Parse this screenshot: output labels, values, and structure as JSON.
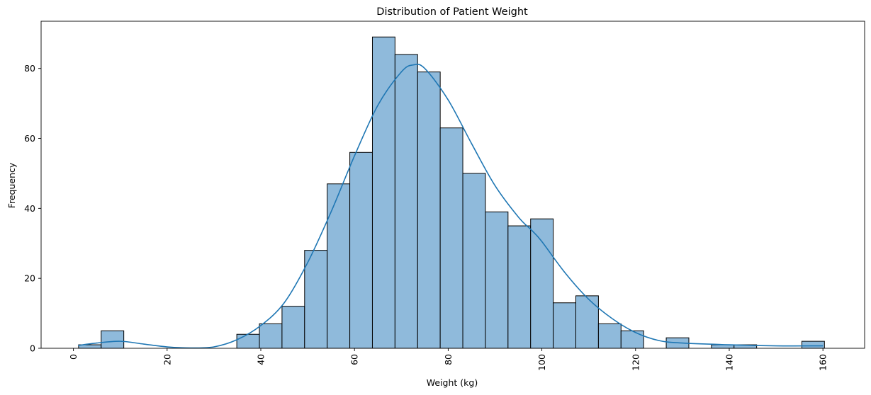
{
  "chart_data": {
    "type": "bar",
    "title": "Distribution of Patient Weight",
    "xlabel": "Weight (kg)",
    "ylabel": "Frequency",
    "xlim": [
      -6.9,
      168.9
    ],
    "ylim": [
      0,
      93.5
    ],
    "x_ticks": [
      0,
      20,
      40,
      60,
      80,
      100,
      120,
      140,
      160
    ],
    "y_ticks": [
      0,
      20,
      40,
      60,
      80
    ],
    "x_tick_rotation": 90,
    "grid": false,
    "legend": null,
    "bin_edges": [
      1.1,
      5.925,
      10.75,
      15.575,
      20.4,
      25.225,
      30.05,
      34.875,
      39.7,
      44.525,
      49.35,
      54.175,
      59.0,
      63.825,
      68.65,
      73.475,
      78.3,
      83.125,
      87.95,
      92.775,
      97.6,
      102.425,
      107.25,
      112.075,
      116.9,
      121.725,
      126.55,
      131.375,
      136.2,
      141.025,
      145.85,
      150.675,
      155.5,
      160.325
    ],
    "counts": [
      1,
      5,
      0,
      0,
      0,
      0,
      0,
      4,
      7,
      12,
      28,
      47,
      56,
      89,
      84,
      79,
      63,
      50,
      39,
      35,
      37,
      13,
      15,
      7,
      5,
      0,
      3,
      0,
      1,
      1,
      0,
      0,
      2
    ],
    "kde": {
      "x": [
        1,
        5,
        10,
        15,
        20,
        25,
        30,
        35,
        40,
        45,
        50,
        55,
        60,
        65,
        70,
        72.5,
        75,
        80,
        85,
        90,
        95,
        98,
        100,
        105,
        110,
        115,
        120,
        125,
        130,
        140,
        150,
        160
      ],
      "y": [
        0.8,
        1.5,
        2.0,
        1.2,
        0.4,
        0.1,
        0.4,
        2.5,
        6.5,
        13.0,
        24.5,
        39.0,
        55.0,
        69.5,
        79.0,
        81.0,
        80.0,
        71.0,
        58.5,
        46.5,
        37.5,
        33.5,
        30.5,
        21.5,
        14.0,
        8.5,
        4.5,
        2.2,
        1.5,
        1.0,
        0.7,
        0.7
      ]
    },
    "colors": {
      "bar_fill": "#8fbadb",
      "bar_edge": "#000000",
      "kde_line": "#1f77b4"
    }
  }
}
